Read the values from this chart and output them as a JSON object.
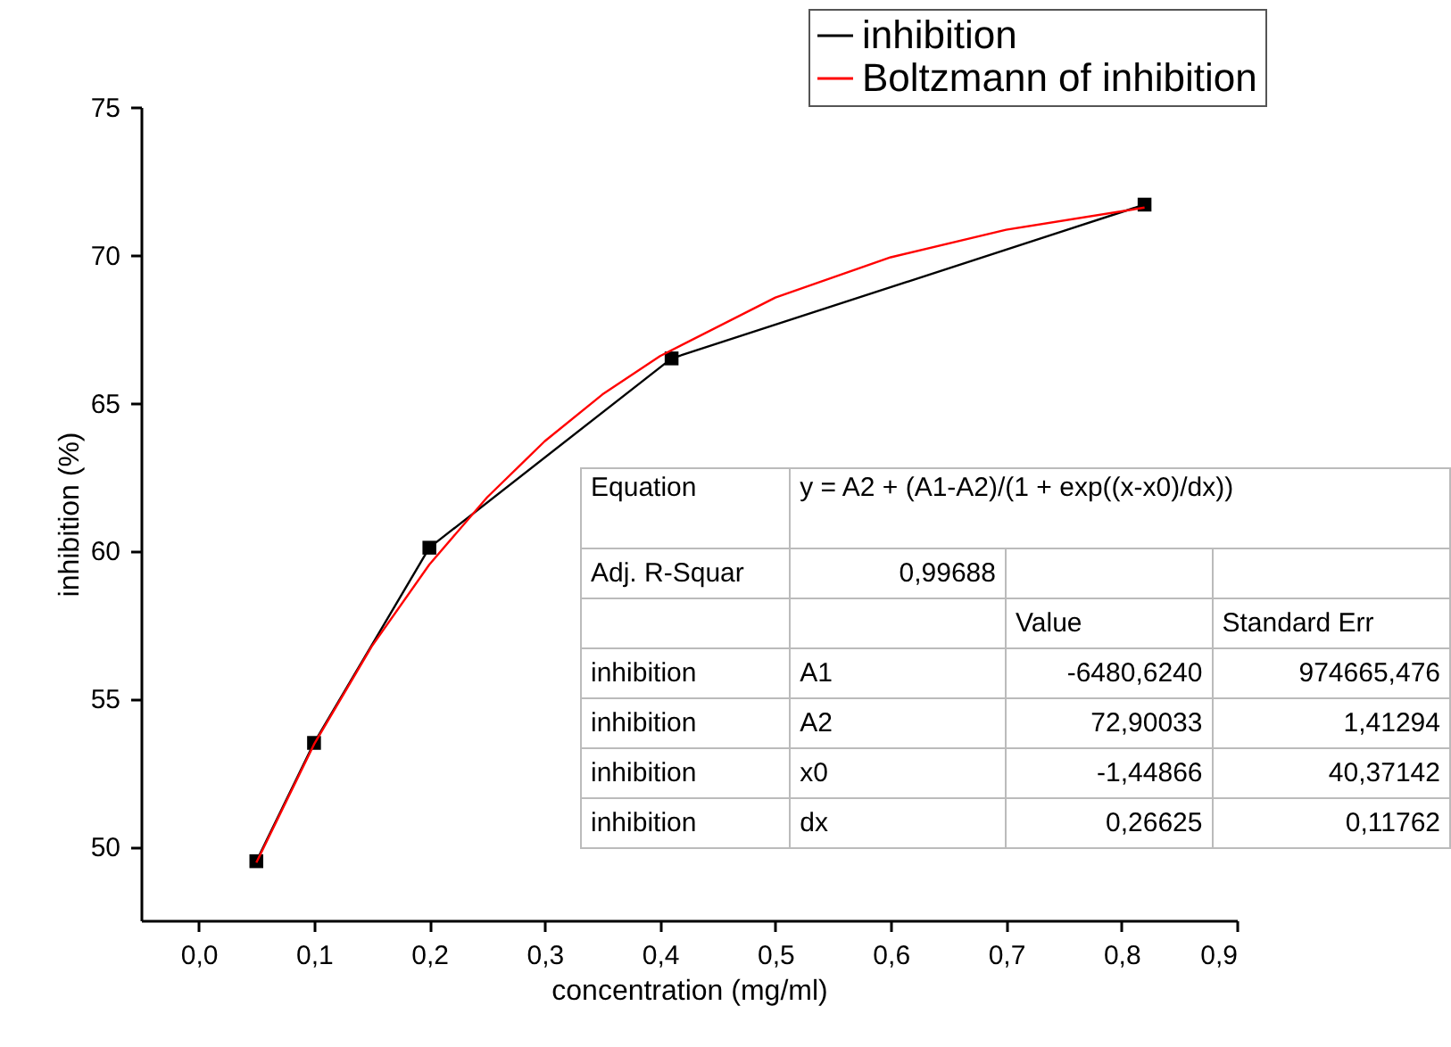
{
  "chart_data": {
    "type": "line",
    "xlabel": "concentration (mg/ml)",
    "ylabel": "inhibition (%)",
    "xlim": [
      -0.05,
      0.9
    ],
    "ylim": [
      47.5,
      75
    ],
    "xticks": [
      {
        "value": 0,
        "label": "0,0"
      },
      {
        "value": 0.1,
        "label": "0,1"
      },
      {
        "value": 0.2,
        "label": "0,2"
      },
      {
        "value": 0.3,
        "label": "0,3"
      },
      {
        "value": 0.4,
        "label": "0,4"
      },
      {
        "value": 0.5,
        "label": "0,5"
      },
      {
        "value": 0.6,
        "label": "0,6"
      },
      {
        "value": 0.7,
        "label": "0,7"
      },
      {
        "value": 0.8,
        "label": "0,8"
      },
      {
        "value": 0.9,
        "label": "0,9"
      }
    ],
    "yticks": [
      50,
      55,
      60,
      65,
      70,
      75
    ],
    "grid": false,
    "legend": "top right",
    "series": [
      {
        "name": "inhibition",
        "color": "#000000",
        "marker": "square",
        "x": [
          0.05,
          0.1,
          0.2,
          0.41,
          0.82
        ],
        "values": [
          49.5,
          53.5,
          60.1,
          66.5,
          71.7
        ]
      },
      {
        "name": "Boltzmann of inhibition",
        "color": "#ff0000",
        "marker": "none",
        "x": [
          0.05,
          0.1,
          0.15,
          0.2,
          0.25,
          0.3,
          0.35,
          0.4,
          0.5,
          0.6,
          0.7,
          0.82
        ],
        "values": [
          49.45,
          53.45,
          56.76,
          59.53,
          61.8,
          63.7,
          65.28,
          66.58,
          68.56,
          69.92,
          70.85,
          71.6
        ]
      }
    ],
    "annotations": [
      "Equation",
      "y = A2 + (A1-A2)/(1 + exp((x-x0)/dx))",
      "Adj. R-Squar",
      "0,99688",
      "Value",
      "Standard Err",
      "inhibition",
      "A1",
      "-6480,6240",
      "974665,476",
      "inhibition",
      "A2",
      "72,90033",
      "1,41294",
      "inhibition",
      "x0",
      "-1,44866",
      "40,37142",
      "inhibition",
      "dx",
      "0,26625",
      "0,11762"
    ]
  }
}
